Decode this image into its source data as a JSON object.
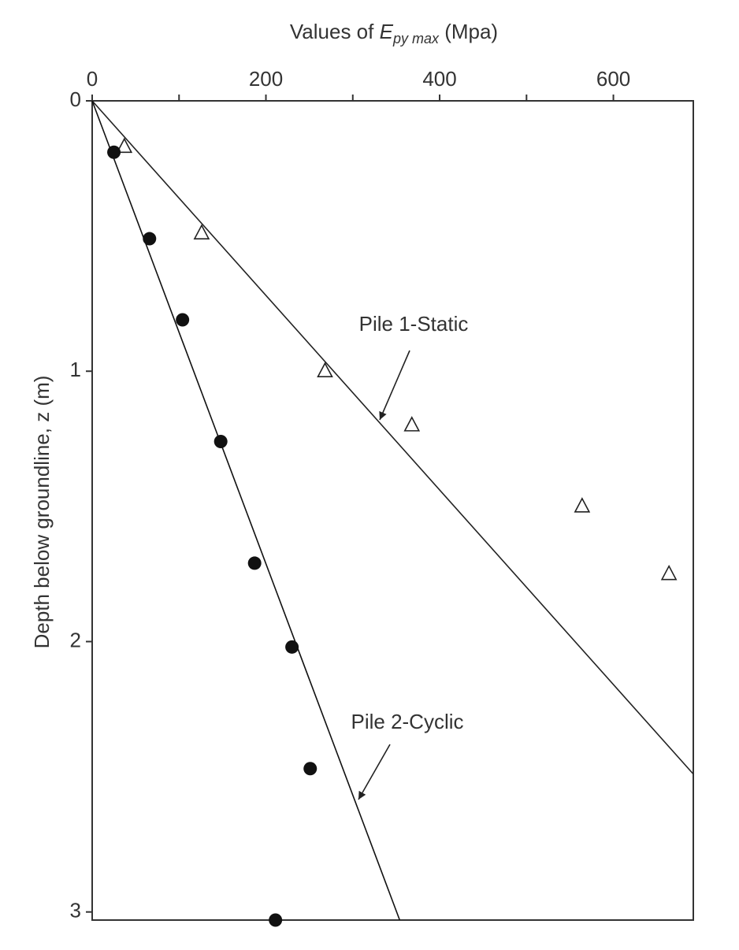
{
  "chart_data": {
    "type": "scatter",
    "x_label": {
      "prefix": "Values of ",
      "symbol": "E",
      "subscript": "py max",
      "suffix": " (Mpa)"
    },
    "y_label": "Depth below groundline, z (m)",
    "x_axis_position": "top",
    "y_inverted": true,
    "xlim": [
      0,
      692
    ],
    "xticks": [
      0,
      200,
      400,
      600
    ],
    "xminorticks": [
      100,
      300,
      500
    ],
    "ylim": [
      0,
      3.03
    ],
    "yticks": [
      0,
      1,
      2,
      3
    ],
    "series": [
      {
        "name": "Pile 1-Static",
        "marker": "open-triangle",
        "color": "#222222",
        "x": [
          37,
          126,
          268,
          368,
          564,
          664
        ],
        "y": [
          0.17,
          0.49,
          1.0,
          1.2,
          1.5,
          1.75
        ],
        "fit": {
          "x": [
            0,
            692
          ],
          "y": [
            0,
            2.49
          ]
        }
      },
      {
        "name": "Pile 2-Cyclic",
        "marker": "filled-circle",
        "color": "#111111",
        "x": [
          25,
          66,
          104,
          148,
          187,
          230,
          251,
          211
        ],
        "y": [
          0.19,
          0.51,
          0.81,
          1.26,
          1.71,
          2.02,
          2.47,
          3.03
        ],
        "fit": {
          "x": [
            0,
            354
          ],
          "y": [
            0,
            3.03
          ]
        }
      }
    ]
  }
}
